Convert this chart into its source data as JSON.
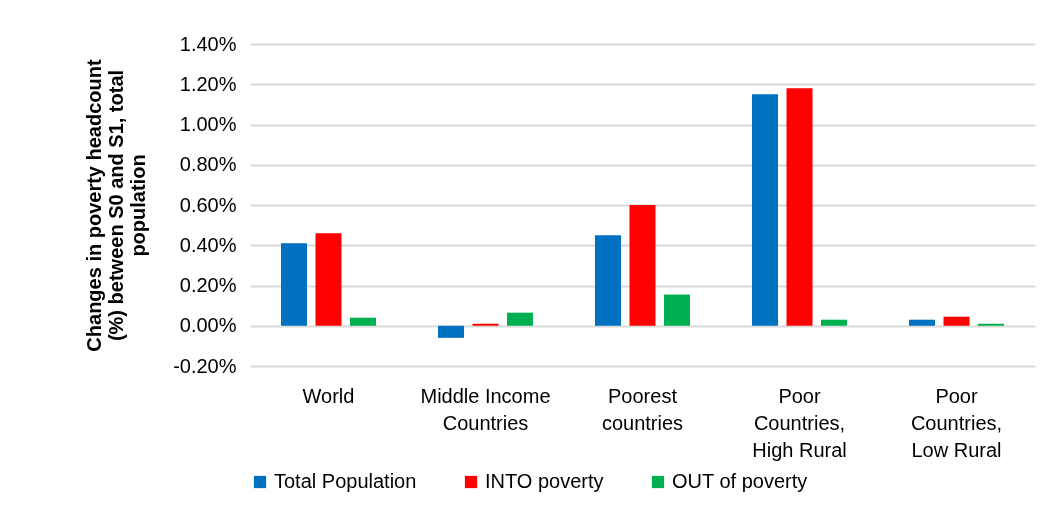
{
  "chart_data": {
    "type": "bar",
    "ylabel": "Changes in poverty headcount (%) between S0 and S1, total population",
    "categories": [
      "World",
      "Middle Income Countries",
      "Poorest countries",
      "Poor Countries, High Rural",
      "Poor Countries, Low Rural"
    ],
    "series": [
      {
        "name": "Total Population",
        "color": "#0070c0",
        "values": [
          0.41,
          -0.06,
          0.45,
          1.15,
          0.03
        ]
      },
      {
        "name": "INTO poverty",
        "color": "#ff0000",
        "values": [
          0.46,
          0.01,
          0.6,
          1.18,
          0.045
        ]
      },
      {
        "name": "OUT of poverty",
        "color": "#00b050",
        "values": [
          0.04,
          0.065,
          0.155,
          0.03,
          0.01
        ]
      }
    ],
    "ylim": [
      -0.2,
      1.4
    ],
    "yticks": [
      {
        "value": -0.2,
        "label": "-0.20%"
      },
      {
        "value": 0,
        "label": "0.00%"
      },
      {
        "value": 0.2,
        "label": "0.20%"
      },
      {
        "value": 0.4,
        "label": "0.40%"
      },
      {
        "value": 0.6,
        "label": "0.60%"
      },
      {
        "value": 0.8,
        "label": "0.80%"
      },
      {
        "value": 1.0,
        "label": "1.00%"
      },
      {
        "value": 1.2,
        "label": "1.20%"
      },
      {
        "value": 1.4,
        "label": "1.40%"
      }
    ],
    "grid": "y",
    "legend": "bottom"
  }
}
